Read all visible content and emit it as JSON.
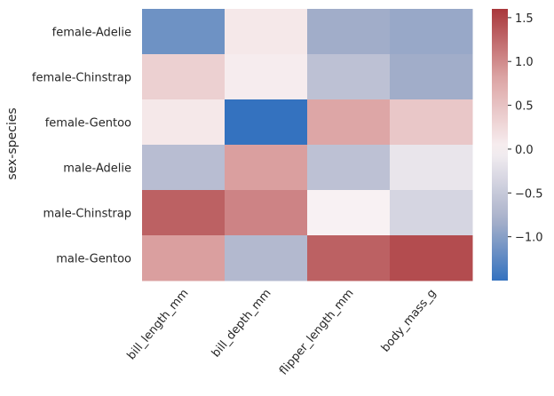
{
  "chart_data": {
    "type": "heatmap",
    "title": "",
    "xlabel": "",
    "ylabel": "sex-species",
    "rows": [
      "female-Adelie",
      "female-Chinstrap",
      "female-Gentoo",
      "male-Adelie",
      "male-Chinstrap",
      "male-Gentoo"
    ],
    "columns": [
      "bill_length_mm",
      "bill_depth_mm",
      "flipper_length_mm",
      "body_mass_g"
    ],
    "values": [
      [
        -1.15,
        0.1,
        -0.85,
        -0.9
      ],
      [
        0.35,
        0.05,
        -0.6,
        -0.85
      ],
      [
        0.1,
        -1.5,
        0.8,
        0.45
      ],
      [
        -0.65,
        0.85,
        -0.6,
        -0.15
      ],
      [
        1.3,
        1.05,
        0.0,
        -0.35
      ],
      [
        0.85,
        -0.7,
        1.3,
        1.45
      ]
    ],
    "vmin": -1.5,
    "vmax": 1.6,
    "colormap": "vlag",
    "colormap_stops": [
      "#2369bd",
      "#a9b1ca",
      "#f8f1f3",
      "#dda6a6",
      "#a9373b"
    ],
    "colorbar": {
      "ticks": [
        -1.0,
        -0.5,
        0.0,
        0.5,
        1.0,
        1.5
      ],
      "tick_labels": [
        "−1.0",
        "−0.5",
        "0.0",
        "0.5",
        "1.0",
        "1.5"
      ]
    }
  }
}
